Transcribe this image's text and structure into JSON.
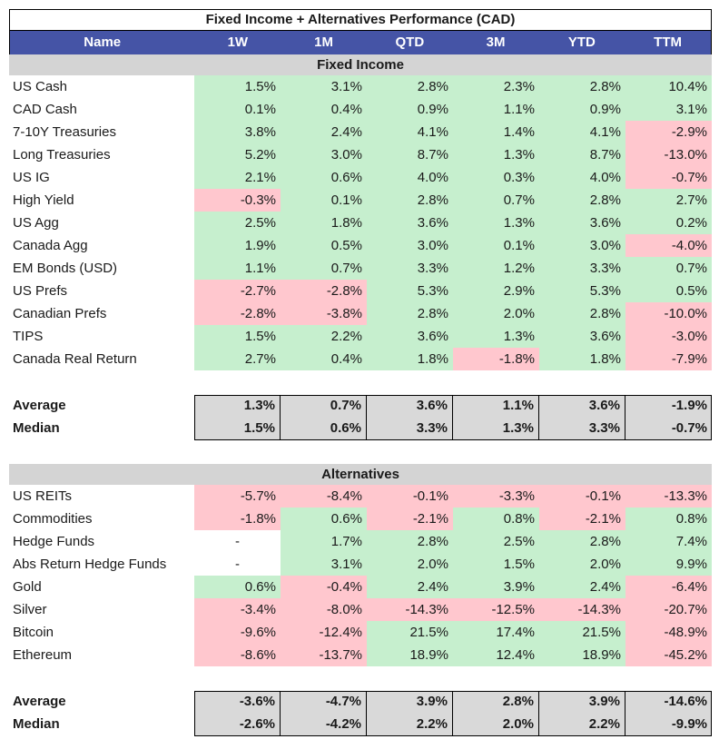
{
  "title": "Fixed Income + Alternatives Performance (CAD)",
  "columns": [
    "Name",
    "1W",
    "1M",
    "QTD",
    "3M",
    "YTD",
    "TTM"
  ],
  "fixed_income": {
    "label": "Fixed Income",
    "rows": [
      {
        "name": "US Cash",
        "values": [
          "1.5%",
          "3.1%",
          "2.8%",
          "2.3%",
          "2.8%",
          "10.4%"
        ]
      },
      {
        "name": "CAD Cash",
        "values": [
          "0.1%",
          "0.4%",
          "0.9%",
          "1.1%",
          "0.9%",
          "3.1%"
        ]
      },
      {
        "name": "7-10Y Treasuries",
        "values": [
          "3.8%",
          "2.4%",
          "4.1%",
          "1.4%",
          "4.1%",
          "-2.9%"
        ]
      },
      {
        "name": "Long Treasuries",
        "values": [
          "5.2%",
          "3.0%",
          "8.7%",
          "1.3%",
          "8.7%",
          "-13.0%"
        ]
      },
      {
        "name": "US IG",
        "values": [
          "2.1%",
          "0.6%",
          "4.0%",
          "0.3%",
          "4.0%",
          "-0.7%"
        ]
      },
      {
        "name": "High Yield",
        "values": [
          "-0.3%",
          "0.1%",
          "2.8%",
          "0.7%",
          "2.8%",
          "2.7%"
        ]
      },
      {
        "name": "US Agg",
        "values": [
          "2.5%",
          "1.8%",
          "3.6%",
          "1.3%",
          "3.6%",
          "0.2%"
        ]
      },
      {
        "name": "Canada Agg",
        "values": [
          "1.9%",
          "0.5%",
          "3.0%",
          "0.1%",
          "3.0%",
          "-4.0%"
        ]
      },
      {
        "name": "EM Bonds (USD)",
        "values": [
          "1.1%",
          "0.7%",
          "3.3%",
          "1.2%",
          "3.3%",
          "0.7%"
        ]
      },
      {
        "name": "US Prefs",
        "values": [
          "-2.7%",
          "-2.8%",
          "5.3%",
          "2.9%",
          "5.3%",
          "0.5%"
        ]
      },
      {
        "name": "Canadian Prefs",
        "values": [
          "-2.8%",
          "-3.8%",
          "2.8%",
          "2.0%",
          "2.8%",
          "-10.0%"
        ]
      },
      {
        "name": "TIPS",
        "values": [
          "1.5%",
          "2.2%",
          "3.6%",
          "1.3%",
          "3.6%",
          "-3.0%"
        ]
      },
      {
        "name": "Canada Real Return",
        "values": [
          "2.7%",
          "0.4%",
          "1.8%",
          "-1.8%",
          "1.8%",
          "-7.9%"
        ]
      }
    ],
    "average": {
      "label": "Average",
      "values": [
        "1.3%",
        "0.7%",
        "3.6%",
        "1.1%",
        "3.6%",
        "-1.9%"
      ]
    },
    "median": {
      "label": "Median",
      "values": [
        "1.5%",
        "0.6%",
        "3.3%",
        "1.3%",
        "3.3%",
        "-0.7%"
      ]
    }
  },
  "alternatives": {
    "label": "Alternatives",
    "rows": [
      {
        "name": "US REITs",
        "values": [
          "-5.7%",
          "-8.4%",
          "-0.1%",
          "-3.3%",
          "-0.1%",
          "-13.3%"
        ]
      },
      {
        "name": "Commodities",
        "values": [
          "-1.8%",
          "0.6%",
          "-2.1%",
          "0.8%",
          "-2.1%",
          "0.8%"
        ]
      },
      {
        "name": "Hedge Funds",
        "values": [
          "-",
          "1.7%",
          "2.8%",
          "2.5%",
          "2.8%",
          "7.4%"
        ]
      },
      {
        "name": "Abs Return Hedge Funds",
        "values": [
          "-",
          "3.1%",
          "2.0%",
          "1.5%",
          "2.0%",
          "9.9%"
        ]
      },
      {
        "name": "Gold",
        "values": [
          "0.6%",
          "-0.4%",
          "2.4%",
          "3.9%",
          "2.4%",
          "-6.4%"
        ]
      },
      {
        "name": "Silver",
        "values": [
          "-3.4%",
          "-8.0%",
          "-14.3%",
          "-12.5%",
          "-14.3%",
          "-20.7%"
        ]
      },
      {
        "name": "Bitcoin",
        "values": [
          "-9.6%",
          "-12.4%",
          "21.5%",
          "17.4%",
          "21.5%",
          "-48.9%"
        ]
      },
      {
        "name": "Ethereum",
        "values": [
          "-8.6%",
          "-13.7%",
          "18.9%",
          "12.4%",
          "18.9%",
          "-45.2%"
        ]
      }
    ],
    "average": {
      "label": "Average",
      "values": [
        "-3.6%",
        "-4.7%",
        "3.9%",
        "2.8%",
        "3.9%",
        "-14.6%"
      ]
    },
    "median": {
      "label": "Median",
      "values": [
        "-2.6%",
        "-4.2%",
        "2.2%",
        "2.0%",
        "2.2%",
        "-9.9%"
      ]
    }
  },
  "colors": {
    "header": "#4554a6",
    "positive": "#c6efce",
    "negative": "#ffc7ce",
    "section": "#d4d4d4",
    "stats": "#d9d9d9"
  }
}
